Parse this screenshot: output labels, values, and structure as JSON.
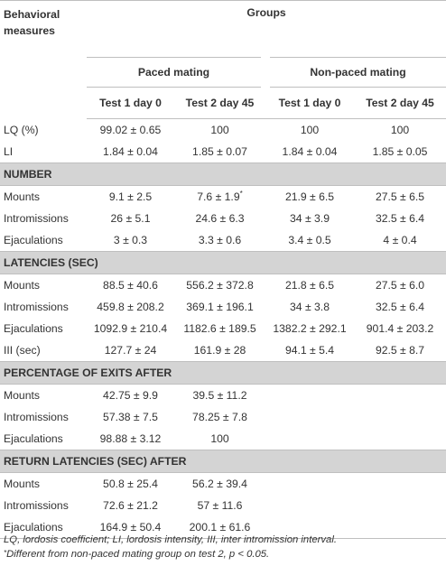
{
  "header": {
    "behavioral_measures_line1": "Behavioral",
    "behavioral_measures_line2": "measures",
    "groups": "Groups",
    "paced": "Paced mating",
    "nonpaced": "Non-paced mating",
    "tests": [
      "Test 1 day 0",
      "Test 2 day 45",
      "Test 1 day 0",
      "Test 2 day 45"
    ]
  },
  "rows_top": [
    {
      "label": "LQ (%)",
      "values": [
        "99.02 ± 0.65",
        "100",
        "100",
        "100"
      ]
    },
    {
      "label": "LI",
      "values": [
        "1.84 ± 0.04",
        "1.85 ± 0.07",
        "1.84 ± 0.04",
        "1.85 ± 0.05"
      ]
    }
  ],
  "sections": [
    {
      "title": "NUMBER",
      "rows": [
        {
          "label": "Mounts",
          "values": [
            "9.1 ± 2.5",
            "7.6 ± 1.9",
            "21.9 ± 6.5",
            "27.5 ± 6.5"
          ],
          "mark": "*"
        },
        {
          "label": "Intromissions",
          "values": [
            "26 ± 5.1",
            "24.6 ± 6.3",
            "34 ± 3.9",
            "32.5 ± 6.4"
          ]
        },
        {
          "label": "Ejaculations",
          "values": [
            "3 ± 0.3",
            "3.3 ± 0.6",
            "3.4 ± 0.5",
            "4 ± 0.4"
          ]
        }
      ]
    },
    {
      "title": "LATENCIES (SEC)",
      "rows": [
        {
          "label": "Mounts",
          "values": [
            "88.5 ± 40.6",
            "556.2 ± 372.8",
            "21.8 ± 6.5",
            "27.5 ± 6.0"
          ]
        },
        {
          "label": "Intromissions",
          "values": [
            "459.8 ± 208.2",
            "369.1 ± 196.1",
            "34 ± 3.8",
            "32.5 ± 6.4"
          ]
        },
        {
          "label": "Ejaculations",
          "values": [
            "1092.9 ± 210.4",
            "1182.6 ± 189.5",
            "1382.2 ± 292.1",
            "901.4 ± 203.2"
          ]
        },
        {
          "label": "III (sec)",
          "values": [
            "127.7 ± 24",
            "161.9 ± 28",
            "94.1 ± 5.4",
            "92.5 ± 8.7"
          ]
        }
      ]
    },
    {
      "title": "PERCENTAGE OF EXITS AFTER",
      "rows": [
        {
          "label": "Mounts",
          "values": [
            "42.75 ± 9.9",
            "39.5 ± 11.2",
            "",
            ""
          ]
        },
        {
          "label": "Intromissions",
          "values": [
            "57.38 ± 7.5",
            "78.25 ± 7.8",
            "",
            ""
          ]
        },
        {
          "label": "Ejaculations",
          "values": [
            "98.88 ± 3.12",
            "100",
            "",
            ""
          ]
        }
      ]
    },
    {
      "title": "RETURN LATENCIES (SEC) AFTER",
      "rows": [
        {
          "label": "Mounts",
          "values": [
            "50.8 ± 25.4",
            "56.2 ± 39.4",
            "",
            ""
          ]
        },
        {
          "label": "Intromissions",
          "values": [
            "72.6 ± 21.2",
            "57 ± 11.6",
            "",
            ""
          ]
        },
        {
          "label": "Ejaculations",
          "values": [
            "164.9 ± 50.4",
            "200.1 ± 61.6",
            "",
            ""
          ]
        }
      ]
    }
  ],
  "footnotes": {
    "abbrev": "LQ, lordosis coefficient; LI, lordosis intensity, III, inter intromission interval.",
    "star": "*",
    "note": "Different from non-paced mating group on test 2, p < 0.05."
  }
}
